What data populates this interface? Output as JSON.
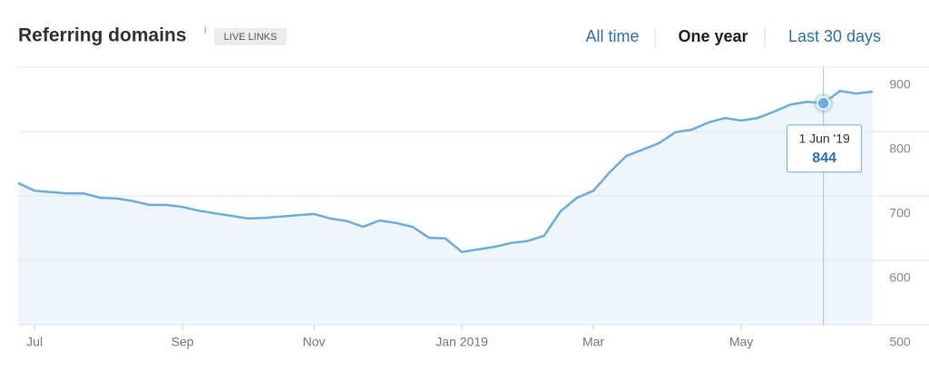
{
  "header": {
    "title": "Referring domains",
    "info": "i",
    "badge": "LIVE LINKS",
    "tabs": [
      "All time",
      "One year",
      "Last 30 days"
    ]
  },
  "chart_data": {
    "type": "area",
    "categories": [
      null,
      "Jul",
      null,
      null,
      null,
      null,
      null,
      null,
      null,
      null,
      "Sep",
      null,
      null,
      null,
      null,
      null,
      null,
      null,
      "Nov",
      null,
      null,
      null,
      null,
      null,
      null,
      null,
      null,
      "Jan 2019",
      null,
      null,
      null,
      null,
      null,
      null,
      null,
      "Mar",
      null,
      null,
      null,
      null,
      null,
      null,
      null,
      null,
      "May",
      null,
      null,
      null,
      null,
      null,
      null,
      null,
      null
    ],
    "series": [
      {
        "name": "Referring domains",
        "color": "#6aaedf",
        "values": [
          720,
          708,
          706,
          704,
          704,
          697,
          696,
          692,
          686,
          686,
          683,
          677,
          673,
          669,
          665,
          666,
          668,
          670,
          672,
          665,
          661,
          652,
          662,
          658,
          652,
          635,
          634,
          613,
          617,
          621,
          627,
          630,
          638,
          676,
          697,
          708,
          737,
          762,
          772,
          782,
          799,
          803,
          814,
          821,
          817,
          821,
          831,
          842,
          846,
          844,
          863,
          859,
          862
        ]
      }
    ],
    "ylim": [
      500,
      900
    ],
    "yticks": [
      500,
      600,
      700,
      800,
      900
    ],
    "grid": true,
    "fill_color": "#eef5fb",
    "tooltip": {
      "label": "1 Jun '19",
      "value": 844
    }
  }
}
